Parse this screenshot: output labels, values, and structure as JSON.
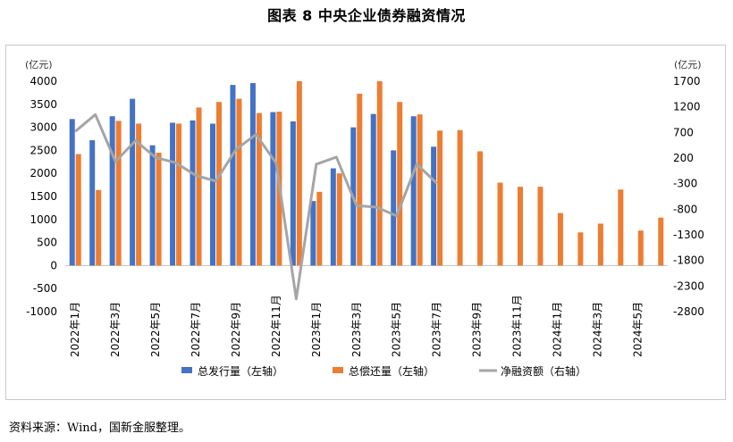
{
  "title": "图表 8  中央企业债券融资情况",
  "source": "资料来源：Wind，国新金服整理。",
  "chart_data": {
    "type": "bar",
    "left_unit": "(亿元)",
    "right_unit": "(亿元)",
    "ylim_left": [
      -1000,
      4000
    ],
    "ylim_right": [
      -2800,
      1700
    ],
    "left_ticks": [
      "4000",
      "3500",
      "3000",
      "2500",
      "2000",
      "1500",
      "1000",
      "500",
      "0",
      "-500",
      "-1000"
    ],
    "right_ticks": [
      "1700",
      "1200",
      "700",
      "200",
      "-300",
      "-800",
      "-1300",
      "-1800",
      "-2300",
      "-2800"
    ],
    "categories": [
      "2022年1月",
      "2022年2月",
      "2022年3月",
      "2022年4月",
      "2022年5月",
      "2022年6月",
      "2022年7月",
      "2022年8月",
      "2022年9月",
      "2022年10月",
      "2022年11月",
      "2022年12月",
      "2023年1月",
      "2023年2月",
      "2023年3月",
      "2023年4月",
      "2023年5月",
      "2023年6月",
      "2023年7月",
      "2023年8月",
      "2023年9月",
      "2023年10月",
      "2023年11月",
      "2023年12月",
      "2024年1月",
      "2024年2月",
      "2024年3月",
      "2024年4月",
      "2024年5月",
      "2024年6月"
    ],
    "x_tick_labels": [
      "2022年1月",
      "2022年3月",
      "2022年5月",
      "2022年7月",
      "2022年9月",
      "2022年11月",
      "2023年1月",
      "2023年3月",
      "2023年5月",
      "2023年7月",
      "2023年9月",
      "2023年11月",
      "2024年1月",
      "2024年3月",
      "2024年5月"
    ],
    "series": [
      {
        "name": "总发行量（左轴）",
        "axis": "left",
        "kind": "bar",
        "color": "#4472C4",
        "values": [
          3180,
          2720,
          3240,
          3620,
          2610,
          3100,
          3150,
          3080,
          3920,
          3960,
          3330,
          3130,
          1400,
          2110,
          3000,
          3290,
          2500,
          3240,
          2580,
          null,
          null,
          null,
          null,
          null,
          null,
          null,
          null,
          null,
          null,
          null
        ]
      },
      {
        "name": "总偿还量（左轴）",
        "axis": "left",
        "kind": "bar",
        "color": "#ED7D31",
        "values": [
          2420,
          1640,
          3140,
          3080,
          2450,
          3080,
          3430,
          3550,
          3620,
          3310,
          3340,
          4000,
          1600,
          2000,
          3730,
          4000,
          3550,
          3280,
          2930,
          2940,
          2480,
          1800,
          1710,
          1710,
          1140,
          720,
          910,
          1650,
          760,
          1040
        ]
      },
      {
        "name": "净融资额（右轴）",
        "axis": "right",
        "kind": "line",
        "color": "#A5A5A5",
        "values": [
          720,
          1050,
          130,
          540,
          210,
          110,
          -140,
          -250,
          370,
          660,
          100,
          -2550,
          80,
          220,
          -730,
          -760,
          -930,
          80,
          -290,
          null,
          null,
          null,
          null,
          null,
          null,
          null,
          null,
          null,
          null,
          null
        ]
      }
    ],
    "grid": false,
    "legend_position": "bottom"
  }
}
